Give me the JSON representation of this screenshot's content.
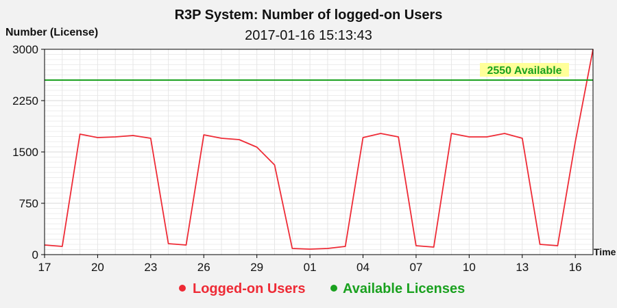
{
  "chart_data": {
    "type": "line",
    "title": "R3P System: Number of logged-on Users",
    "subtitle": "2017-01-16 15:13:43",
    "ylabel": "Number (License)",
    "xlabel": "Time",
    "ylim": [
      0,
      3000
    ],
    "yticks": [
      "0",
      "750",
      "1500",
      "2250",
      "3000"
    ],
    "xticks": [
      "17",
      "20",
      "23",
      "26",
      "29",
      "01",
      "04",
      "07",
      "10",
      "13",
      "16"
    ],
    "grid": true,
    "legend_placement": "bottom",
    "series": [
      {
        "name": "Logged-on Users",
        "color": "#ee2a35",
        "x": [
          0,
          1,
          2,
          3,
          4,
          5,
          6,
          7,
          8,
          9,
          10,
          11,
          12,
          13,
          14,
          15,
          16,
          17,
          18,
          19,
          20,
          21,
          22,
          23,
          24,
          25,
          26,
          27,
          28,
          29,
          30,
          31
        ],
        "values": [
          140,
          120,
          1760,
          1710,
          1720,
          1740,
          1700,
          160,
          140,
          1750,
          1700,
          1680,
          1570,
          1310,
          90,
          80,
          90,
          120,
          1710,
          1770,
          1720,
          130,
          110,
          1770,
          1720,
          1720,
          1770,
          1700,
          150,
          130,
          1650,
          3000
        ]
      },
      {
        "name": "Available Licenses",
        "color": "#1aa11f",
        "x": [
          0,
          31
        ],
        "values": [
          2550,
          2550
        ]
      }
    ],
    "annotations": [
      {
        "text": "2550 Available",
        "y": 2550,
        "background": "#ffff99",
        "color": "#1aa11f"
      }
    ]
  }
}
